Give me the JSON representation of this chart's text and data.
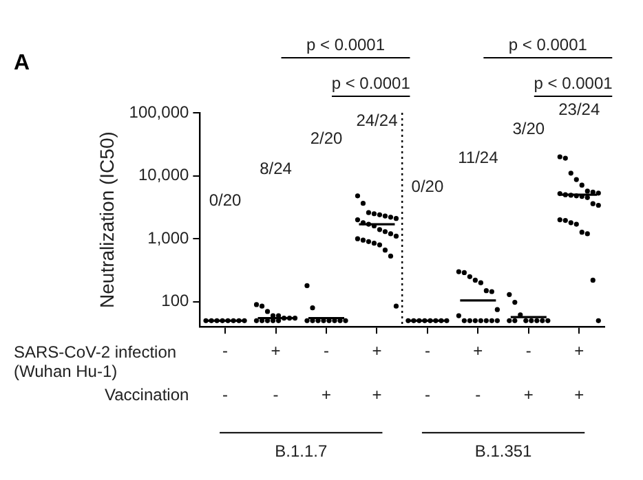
{
  "chart_data": {
    "type": "scatter",
    "title": "A",
    "ylabel": "Neutralization (IC50)",
    "categories": [
      "-",
      "+",
      "-",
      "+",
      "-",
      "+",
      "-",
      "+"
    ],
    "ylim": [
      40,
      100000
    ],
    "yticks": [
      100,
      {
        "value": 1000,
        "label": "1,000"
      },
      {
        "value": 10000,
        "label": "10,000"
      },
      {
        "value": 100000,
        "label": "100,000"
      }
    ],
    "log": "y",
    "grid": false,
    "legend": false,
    "marker": "circle",
    "series": [
      {
        "color": "#000000",
        "values": [
          50,
          90,
          180,
          4800,
          50,
          300,
          130,
          20000
        ]
      },
      {
        "color": "#000000",
        "values": [
          50,
          85,
          80,
          3650,
          50,
          290,
          98,
          19000
        ]
      },
      {
        "color": "#000000",
        "values": [
          50,
          70,
          50,
          2600,
          50,
          250,
          62,
          11000
        ]
      },
      {
        "color": "#000000",
        "values": [
          50,
          60,
          50,
          2500,
          50,
          220,
          50,
          8700
        ]
      },
      {
        "color": "#000000",
        "values": [
          50,
          60,
          50,
          2400,
          50,
          200,
          50,
          7100
        ]
      },
      {
        "color": "#000000",
        "values": [
          50,
          55,
          50,
          2300,
          50,
          150,
          50,
          5700
        ]
      },
      {
        "color": "#000000",
        "values": [
          50,
          55,
          50,
          2200,
          50,
          145,
          50,
          5500
        ]
      },
      {
        "color": "#000000",
        "values": [
          50,
          55,
          50,
          2100,
          50,
          75,
          50,
          5300
        ]
      },
      {
        "color": "#000000",
        "values": [
          null,
          50,
          50,
          2000,
          null,
          60,
          50,
          5200
        ]
      },
      {
        "color": "#000000",
        "values": [
          null,
          50,
          50,
          1800,
          null,
          50,
          50,
          5000
        ]
      },
      {
        "color": "#000000",
        "values": [
          null,
          50,
          null,
          1700,
          null,
          50,
          null,
          4900
        ]
      },
      {
        "color": "#000000",
        "values": [
          null,
          50,
          null,
          1600,
          null,
          50,
          null,
          4800
        ]
      },
      {
        "color": "#000000",
        "values": [
          null,
          50,
          null,
          1400,
          null,
          50,
          null,
          4700
        ]
      },
      {
        "color": "#000000",
        "values": [
          null,
          null,
          null,
          1300,
          null,
          50,
          null,
          4500
        ]
      },
      {
        "color": "#000000",
        "values": [
          null,
          null,
          null,
          1200,
          null,
          50,
          null,
          3600
        ]
      },
      {
        "color": "#000000",
        "values": [
          null,
          null,
          null,
          1100,
          null,
          50,
          null,
          3400
        ]
      },
      {
        "color": "#000000",
        "values": [
          null,
          null,
          null,
          1000,
          null,
          null,
          null,
          2000
        ]
      },
      {
        "color": "#000000",
        "values": [
          null,
          null,
          null,
          950,
          null,
          null,
          null,
          1950
        ]
      },
      {
        "color": "#000000",
        "values": [
          null,
          null,
          null,
          900,
          null,
          null,
          null,
          1800
        ]
      },
      {
        "color": "#000000",
        "values": [
          null,
          null,
          null,
          850,
          null,
          null,
          null,
          1700
        ]
      },
      {
        "color": "#000000",
        "values": [
          null,
          null,
          null,
          800,
          null,
          null,
          null,
          1270
        ]
      },
      {
        "color": "#000000",
        "values": [
          null,
          null,
          null,
          660,
          null,
          null,
          null,
          1200
        ]
      },
      {
        "color": "#000000",
        "values": [
          null,
          null,
          null,
          530,
          null,
          null,
          null,
          220
        ]
      },
      {
        "color": "#000000",
        "values": [
          null,
          null,
          null,
          85,
          null,
          null,
          null,
          50
        ]
      },
      {
        "type": "box",
        "color": "#000000",
        "boxes": [
          {
            "low": 50,
            "q1": 50,
            "median": 50,
            "q3": 50,
            "high": 50
          },
          {
            "low": 55,
            "q1": 55,
            "median": 55,
            "q3": 55,
            "high": 55
          },
          {
            "low": 55,
            "q1": 55,
            "median": 55,
            "q3": 55,
            "high": 55
          },
          {
            "low": 1700,
            "q1": 1700,
            "median": 1700,
            "q3": 1700,
            "high": 1700
          },
          {
            "low": 50,
            "q1": 50,
            "median": 50,
            "q3": 50,
            "high": 50
          },
          {
            "low": 105,
            "q1": 105,
            "median": 105,
            "q3": 105,
            "high": 105
          },
          {
            "low": 57,
            "q1": 57,
            "median": 57,
            "q3": 57,
            "high": 57
          },
          {
            "low": 5000,
            "q1": 5000,
            "median": 5000,
            "q3": 5000,
            "high": 5000
          }
        ]
      }
    ],
    "annotations": [
      "0/20",
      "8/24",
      "2/20",
      "24/24",
      "0/20",
      "11/24",
      "3/20",
      "23/24",
      "p < 0.0001",
      "p < 0.0001",
      "p < 0.0001",
      "p < 0.0001",
      "SARS-CoV-2 infection\n(Wuhan Hu-1)",
      "Vaccination",
      "B.1.1.7",
      "B.1.351",
      "-",
      "-",
      "+",
      "+",
      "-",
      "-",
      "+",
      "+"
    ]
  }
}
